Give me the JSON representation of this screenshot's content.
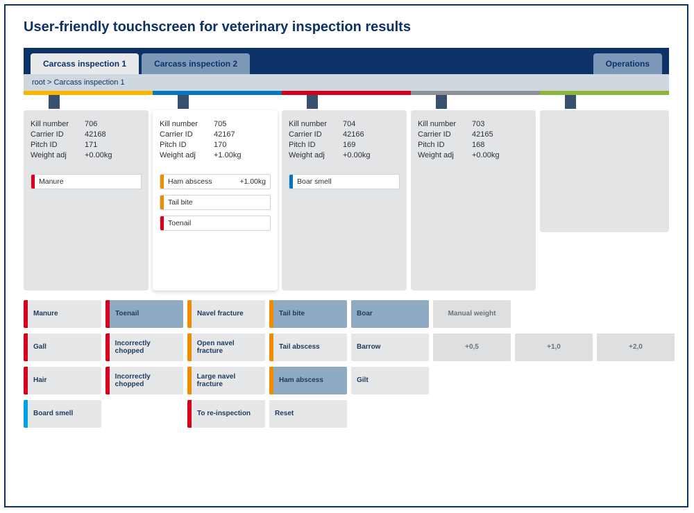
{
  "colors": {
    "frame_border": "#0d3268",
    "tabbar_bg": "#0d3268",
    "tab_active_bg": "#e7e9ea",
    "tab_inactive_bg": "#7e98b9",
    "yellow": "#ffb400",
    "blue": "#0077c0",
    "red": "#d6001c",
    "gray": "#8e9093",
    "green": "#8bb63a",
    "orange": "#f08c00",
    "cyan": "#00a3e0",
    "btn_selected_bg": "#8fabc4"
  },
  "title": "User-friendly touchscreen for veterinary inspection results",
  "tabs": {
    "t1": "Carcass inspection 1",
    "t2": "Carcass inspection 2",
    "ops": "Operations"
  },
  "breadcrumb": "root > Carcass inspection 1",
  "labels": {
    "kill": "Kill number",
    "carrier": "Carrier ID",
    "pitch": "Pitch ID",
    "weight": "Weight adj"
  },
  "cards": [
    {
      "kill": "706",
      "carrier": "42168",
      "pitch": "171",
      "weight": "+0.00kg",
      "findings": [
        {
          "label": "Manure",
          "color": "#d6001c",
          "wt": ""
        }
      ]
    },
    {
      "kill": "705",
      "carrier": "42167",
      "pitch": "170",
      "weight": "+1.00kg",
      "findings": [
        {
          "label": "Ham abscess",
          "color": "#f08c00",
          "wt": "+1.00kg"
        },
        {
          "label": "Tail bite",
          "color": "#f08c00",
          "wt": ""
        },
        {
          "label": "Toenail",
          "color": "#d6001c",
          "wt": ""
        }
      ]
    },
    {
      "kill": "704",
      "carrier": "42166",
      "pitch": "169",
      "weight": "+0.00kg",
      "findings": [
        {
          "label": "Boar smell",
          "color": "#0077c0",
          "wt": ""
        }
      ]
    },
    {
      "kill": "703",
      "carrier": "42165",
      "pitch": "168",
      "weight": "+0.00kg",
      "findings": []
    }
  ],
  "grid": {
    "r0": {
      "c0": {
        "label": "Manure",
        "stripe": "#d6001c"
      },
      "c1": {
        "label": "Toenail",
        "stripe": "#d6001c",
        "sel": true
      },
      "c2": {
        "label": "Navel fracture",
        "stripe": "#f08c00"
      },
      "c3": {
        "label": "Tail bite",
        "stripe": "#f08c00",
        "sel": true
      },
      "c4": {
        "label": "Boar",
        "stripe": "",
        "sel": true
      },
      "c5": {
        "label": "Manual weight"
      }
    },
    "r1": {
      "c0": {
        "label": "Gall",
        "stripe": "#d6001c"
      },
      "c1": {
        "label": "Incorrectly chopped",
        "stripe": "#d6001c"
      },
      "c2": {
        "label": "Open navel fracture",
        "stripe": "#f08c00"
      },
      "c3": {
        "label": "Tail abscess",
        "stripe": "#f08c00"
      },
      "c4": {
        "label": "Barrow"
      },
      "c5": {
        "label": "+0,5"
      },
      "c6": {
        "label": "+1,0"
      },
      "c7": {
        "label": "+2,0"
      }
    },
    "r2": {
      "c0": {
        "label": "Hair",
        "stripe": "#d6001c"
      },
      "c1": {
        "label": "Incorrectly chopped",
        "stripe": "#d6001c"
      },
      "c2": {
        "label": "Large navel fracture",
        "stripe": "#f08c00"
      },
      "c3": {
        "label": "Ham abscess",
        "stripe": "#f08c00",
        "sel": true
      },
      "c4": {
        "label": "Gilt"
      }
    },
    "r3": {
      "c0": {
        "label": "Board smell",
        "stripe": "#00a3e0"
      },
      "c2": {
        "label": "To re-inspection",
        "stripe": "#d6001c"
      },
      "c3": {
        "label": "Reset"
      }
    }
  }
}
